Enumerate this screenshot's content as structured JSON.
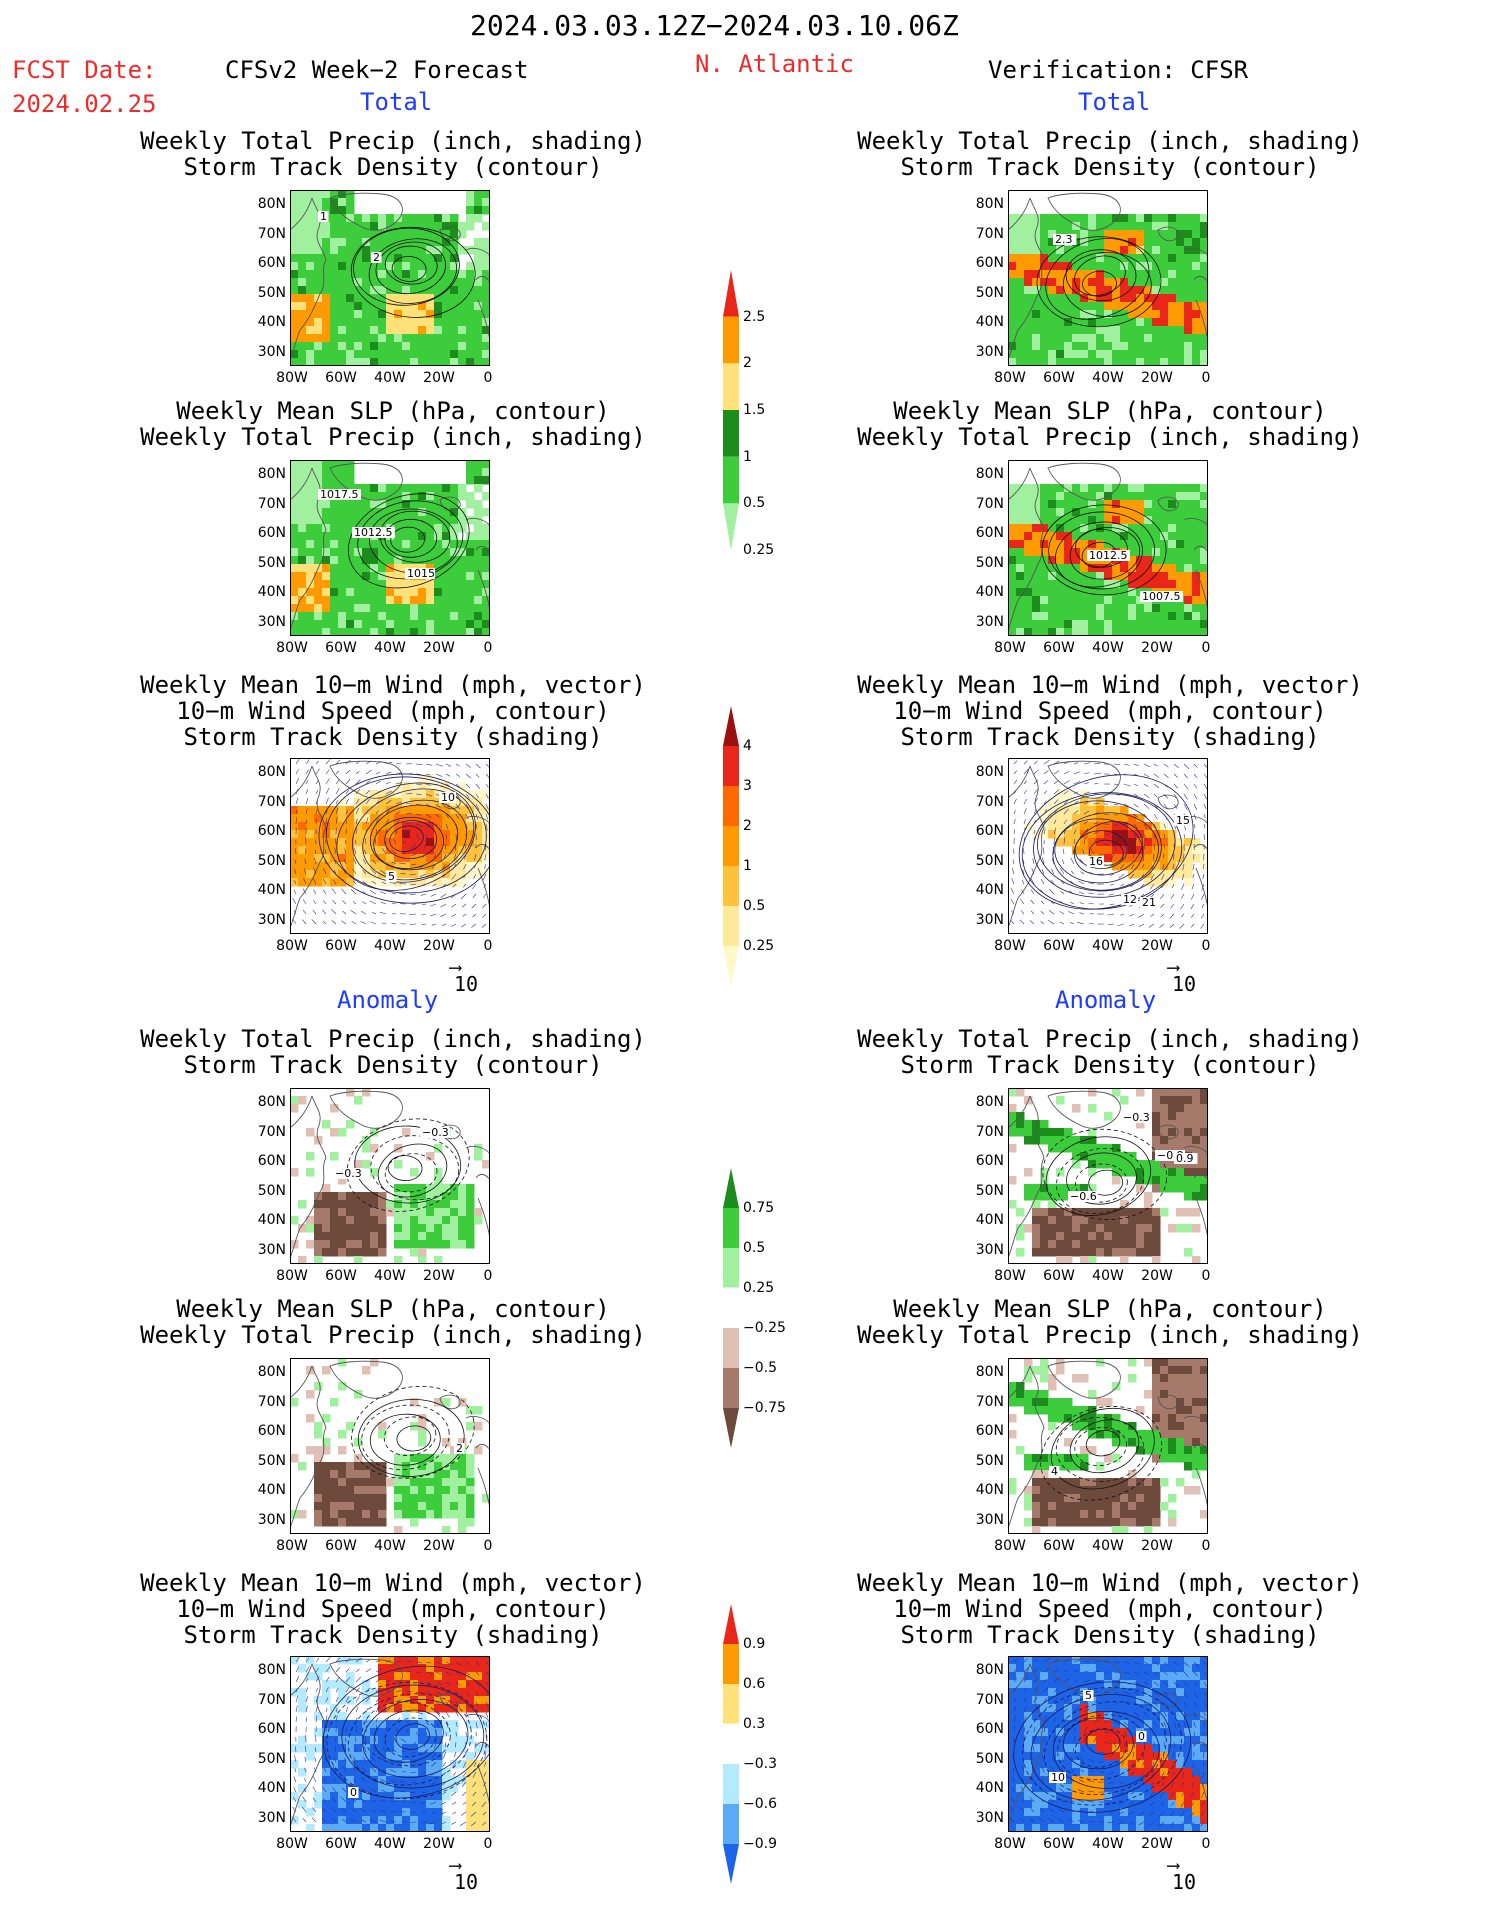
{
  "header": {
    "date_range": "2024.03.03.12Z−2024.03.10.06Z",
    "fcst_label": "FCST Date:",
    "fcst_date": "2024.02.25",
    "model": "CFSv2 Week−2 Forecast",
    "region": "N. Atlantic",
    "verification": "Verification: CFSR"
  },
  "section_labels": {
    "total": "Total",
    "anomaly": "Anomaly"
  },
  "panel_titles": {
    "precip_storm": [
      "Weekly Total Precip (inch, shading)",
      "Storm Track Density (contour)"
    ],
    "slp_precip": [
      "Weekly Mean SLP (hPa, contour)",
      "Weekly Total Precip (inch, shading)"
    ],
    "wind_storm": [
      "Weekly Mean 10−m Wind (mph, vector)",
      "10−m Wind Speed (mph, contour)",
      "Storm Track Density (shading)"
    ]
  },
  "axes": {
    "lat_ticks": [
      "80N",
      "70N",
      "60N",
      "50N",
      "40N",
      "30N"
    ],
    "lon_ticks": [
      "80W",
      "60W",
      "40W",
      "20W",
      "0"
    ]
  },
  "vector_ref": "10",
  "colorbars": {
    "precip_total": {
      "labels": [
        "2.5",
        "2",
        "1.5",
        "1",
        "0.5",
        "0.25"
      ],
      "colors": [
        "#e8261a",
        "#ff9a00",
        "#ffe17a",
        "#1c8c1c",
        "#3ccc3c",
        "#a0f0a0"
      ]
    },
    "storm_total": {
      "labels": [
        "4",
        "3",
        "2",
        "1",
        "0.5",
        "0.25"
      ],
      "colors": [
        "#9c1010",
        "#e8261a",
        "#ff6a00",
        "#ff9a00",
        "#ffc23c",
        "#ffe99a",
        "#fff8c8"
      ]
    },
    "precip_anom": {
      "labels": [
        "0.75",
        "0.5",
        "0.25",
        "−0.25",
        "−0.5",
        "−0.75"
      ],
      "colors": [
        "#1c8c1c",
        "#3ccc3c",
        "#a0f0a0",
        "#ffffff",
        "#e0c0b4",
        "#a57a6a",
        "#6e4a3c"
      ]
    },
    "storm_anom": {
      "labels": [
        "0.9",
        "0.6",
        "0.3",
        "−0.3",
        "−0.6",
        "−0.9"
      ],
      "colors": [
        "#e8261a",
        "#ff9a00",
        "#ffe17a",
        "#ffffff",
        "#b4eaff",
        "#5aaaf5",
        "#1e64e6"
      ]
    }
  },
  "map_labels": {
    "fc_precip_total": [
      "1",
      "2"
    ],
    "fc_slp_total": [
      "1012.5",
      "1015",
      "1017.5"
    ],
    "fc_wind_total": [
      "5",
      "10"
    ],
    "fc_precip_anom": [
      "−0.3",
      "−0.3"
    ],
    "fc_slp_anom": [
      "2"
    ],
    "fc_wind_anom": [
      "0"
    ],
    "vr_precip_total": [
      "2.3"
    ],
    "vr_slp_total": [
      "1012.5",
      "1007.5"
    ],
    "vr_wind_total": [
      "12",
      "15",
      "16",
      "21"
    ],
    "vr_precip_anom": [
      "−0.9",
      "−0.6",
      "−0.3",
      "0.9"
    ],
    "vr_slp_anom": [
      "4"
    ],
    "vr_wind_anom": [
      "5",
      "0",
      "10"
    ]
  }
}
